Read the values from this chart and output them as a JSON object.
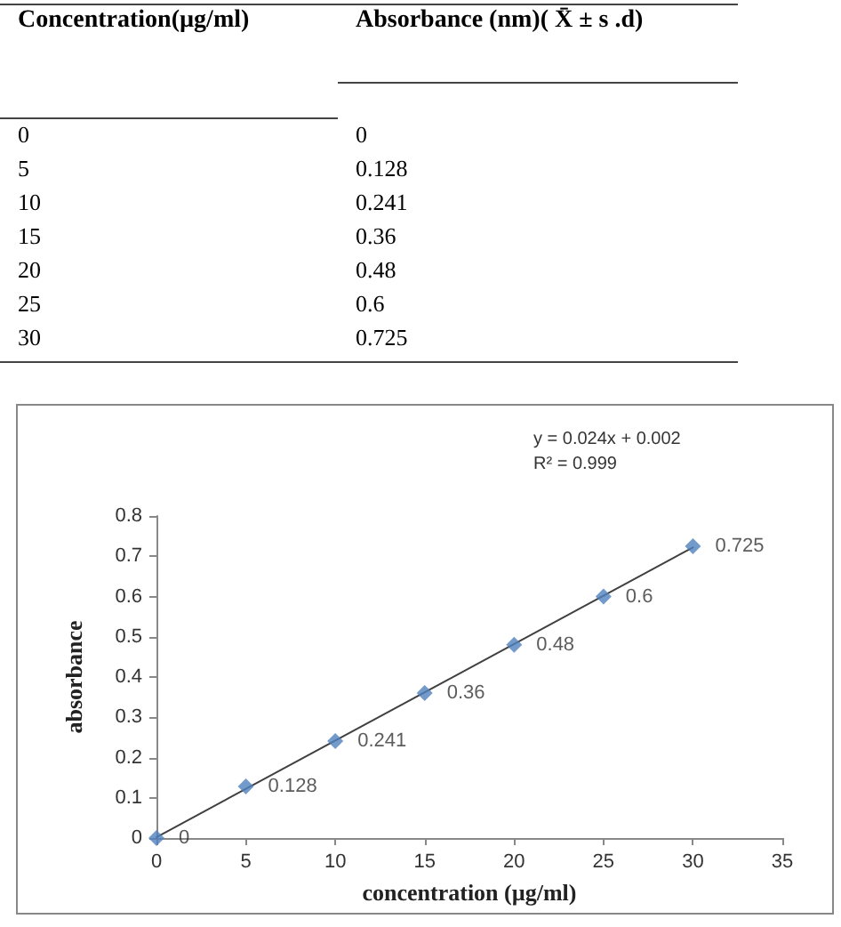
{
  "chart_data": {
    "type": "scatter",
    "xlabel": "concentration (µg/ml)",
    "ylabel": "absorbance",
    "annotations": [
      "Concentration(µg/ml)",
      "Absorbance (nm)( X̄ ± s .d)",
      "y = 0.024x + 0.002",
      "R² = 0.999",
      "0",
      "5",
      "10",
      "15",
      "20",
      "25",
      "30"
    ],
    "series": [
      {
        "type": "scatter",
        "color": "#4f81bd",
        "x": [
          0,
          5,
          10,
          15,
          20,
          25,
          30
        ],
        "values": [
          0,
          0.128,
          0.241,
          0.36,
          0.48,
          0.6,
          0.725
        ],
        "value_labels": [
          "0",
          "0.128",
          "0.241",
          "0.36",
          "0.48",
          "0.6",
          "0.725"
        ]
      },
      {
        "type": "line",
        "color": "#404040",
        "marker": "none",
        "x": [
          0,
          30
        ],
        "values": [
          0.002,
          0.722
        ]
      }
    ],
    "marker": "diamond",
    "line_style": "solid",
    "xlim": [
      0,
      35
    ],
    "xticks": [
      0,
      5,
      10,
      15,
      20,
      25,
      30,
      35
    ],
    "ylim": [
      0,
      0.8
    ],
    "yticks": [
      0,
      0.1,
      0.2,
      0.3,
      0.4,
      0.5,
      0.6,
      0.7,
      0.8
    ],
    "grid": false
  }
}
